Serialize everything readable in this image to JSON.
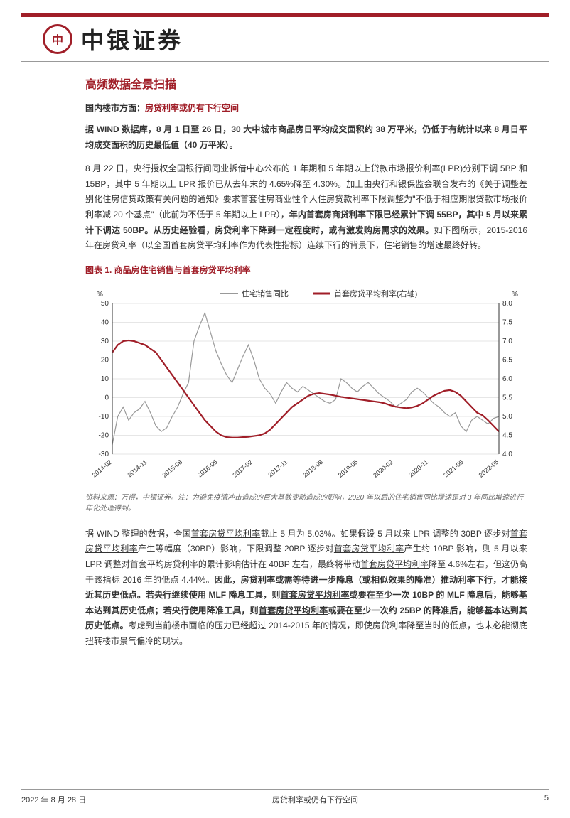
{
  "header": {
    "logo_text": "中",
    "brand": "中银证券"
  },
  "section": {
    "title": "高频数据全景扫描",
    "subtitle_label": "国内楼市方面：",
    "subtitle_hl": "房贷利率或仍有下行空间"
  },
  "para_bold_1": "据 WIND 数据库，8 月 1 日至 26 日，30 大中城市商品房日平均成交面积约 38 万平米，仍低于有统计以来 8 月日平均成交面积的历史最低值（40 万平米）。",
  "para_2_a": "8 月 22 日，央行授权全国银行间同业拆借中心公布的 1 年期和 5 年期以上贷款市场报价利率(LPR)分别下调 5BP 和 15BP，其中 5 年期以上 LPR 报价已从去年末的 4.65%降至 4.30%。加上由央行和银保监会联合发布的《关于调整差别化住房信贷政策有关问题的通知》要求首套住房商业性个人住房贷款利率下限调整为\"不低于相应期限贷款市场报价利率减 20 个基点\"（此前为不低于 5 年期以上 LPR），",
  "para_2_bold": "年内首套房商贷利率下限已经累计下调 55BP，其中 5 月以来累计下调达 50BP。从历史经验看，房贷利率下降到一定程度时，或有激发购房需求的效果。",
  "para_2_c": "如下图所示，2015-2016 年在房贷利率（以全国",
  "para_2_ul": "首套房贷平均利率",
  "para_2_d": "作为代表性指标）连续下行的背景下，住宅销售的增速最终好转。",
  "chart": {
    "title": "图表 1. 商品房住宅销售与首套房贷平均利率",
    "legend": {
      "series1": "住宅销售同比",
      "series2": "首套房贷平均利率(右轴)"
    },
    "left_axis": {
      "unit": "%",
      "min": -30,
      "max": 50,
      "step": 10,
      "ticks": [
        -30,
        -20,
        -10,
        0,
        10,
        20,
        30,
        40,
        50
      ]
    },
    "right_axis": {
      "unit": "%",
      "min": 4.0,
      "max": 8.0,
      "step": 0.5,
      "ticks": [
        4.0,
        4.5,
        5.0,
        5.5,
        6.0,
        6.5,
        7.0,
        7.5,
        8.0
      ]
    },
    "x_labels": [
      "2014-02",
      "2014-11",
      "2015-08",
      "2016-05",
      "2017-02",
      "2017-11",
      "2018-08",
      "2019-05",
      "2020-02",
      "2020-11",
      "2021-08",
      "2022-05"
    ],
    "series1_color": "#999999",
    "series2_color": "#a01e28",
    "grid_color": "#cccccc",
    "background": "#ffffff",
    "line_width_s1": 1.2,
    "line_width_s2": 2.2,
    "series1_values": [
      -25,
      -10,
      -5,
      -12,
      -8,
      -6,
      -2,
      -8,
      -15,
      -18,
      -16,
      -10,
      -5,
      2,
      8,
      30,
      38,
      45,
      35,
      25,
      18,
      12,
      8,
      15,
      22,
      28,
      20,
      10,
      5,
      2,
      -3,
      3,
      8,
      5,
      3,
      6,
      4,
      2,
      0,
      -2,
      -3,
      -1,
      10,
      8,
      5,
      3,
      6,
      8,
      5,
      2,
      0,
      -2,
      -5,
      -3,
      -1,
      3,
      5,
      3,
      0,
      -3,
      -5,
      -8,
      -10,
      -8,
      -15,
      -18,
      -12,
      -10,
      -12,
      -14,
      -11,
      -10
    ],
    "series2_values": [
      6.7,
      6.9,
      7.0,
      7.02,
      7.0,
      6.95,
      6.9,
      6.8,
      6.7,
      6.5,
      6.3,
      6.1,
      5.9,
      5.7,
      5.5,
      5.3,
      5.1,
      4.9,
      4.75,
      4.6,
      4.5,
      4.45,
      4.44,
      4.44,
      4.45,
      4.46,
      4.48,
      4.5,
      4.55,
      4.65,
      4.8,
      4.95,
      5.1,
      5.25,
      5.35,
      5.45,
      5.55,
      5.6,
      5.62,
      5.6,
      5.58,
      5.55,
      5.52,
      5.5,
      5.48,
      5.46,
      5.44,
      5.42,
      5.4,
      5.38,
      5.35,
      5.3,
      5.26,
      5.24,
      5.22,
      5.24,
      5.28,
      5.35,
      5.45,
      5.55,
      5.62,
      5.68,
      5.7,
      5.65,
      5.55,
      5.4,
      5.25,
      5.1,
      5.03,
      4.9,
      4.75,
      4.6
    ]
  },
  "chart_source": "资料来源：万得，中银证券。注：为避免疫情冲击造成的巨大基数变动造成的影响，2020 年以后的住宅销售同比增速是对 3 年同比增速进行年化处理得到。",
  "para_3_a": "据 WIND 整理的数据，全国",
  "para_3_ul1": "首套房贷平均利率",
  "para_3_b": "截止 5 月为 5.03%。如果假设 5 月以来 LPR 调整的 30BP 逐步对",
  "para_3_ul2": "首套房贷平均利率",
  "para_3_c": "产生等幅度（30BP）影响，下限调整 20BP 逐步对",
  "para_3_ul3": "首套房贷平均利率",
  "para_3_d": "产生约 10BP 影响，则 5 月以来 LPR 调整对首套平均房贷利率的累计影响估计在 40BP 左右，最终将带动",
  "para_3_ul4": "首套房贷平均利率",
  "para_3_e": "降至 4.6%左右，但这仍高于该指标 2016 年的低点 4.44%。",
  "para_3_bold1": "因此，房贷利率或需等待进一步降息（或相似效果的降准）推动利率下行，才能接近其历史低点。若央行继续使用 MLF 降息工具，则",
  "para_3_bold_ul": "首套房贷平均利率",
  "para_3_bold2": "或要在至少一次 10BP 的 MLF 降息后，能够基本达到其历史低点；若央行使用降准工具，则",
  "para_3_bold_ul2": "首套房贷平均利率",
  "para_3_bold3": "或要在至少一次约 25BP 的降准后，能够基本达到其历史低点。",
  "para_3_f": "考虑到当前楼市面临的压力已经超过 2014-2015 年的情况，即使房贷利率降至当时的低点，也未必能彻底扭转楼市景气偏冷的现状。",
  "footer": {
    "date": "2022 年 8 月 28 日",
    "title": "房贷利率或仍有下行空间",
    "page": "5"
  }
}
